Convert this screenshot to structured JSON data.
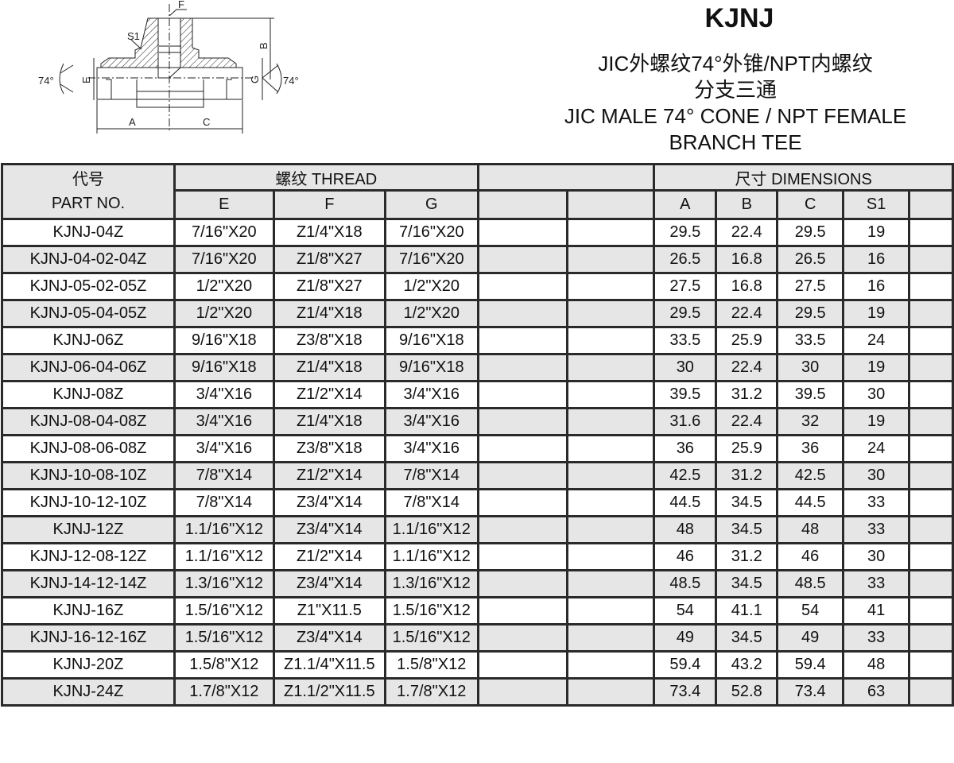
{
  "header": {
    "code": "KJNJ",
    "subtitle_cn_1": "JIC外螺纹74°外锥/NPT内螺纹",
    "subtitle_cn_2": "分支三通",
    "subtitle_en_1": "JIC MALE 74° CONE / NPT FEMALE",
    "subtitle_en_2": "BRANCH TEE"
  },
  "drawing": {
    "labels": {
      "F": "F",
      "S1": "S1",
      "B": "B",
      "E": "E",
      "G": "G",
      "A": "A",
      "C": "C",
      "angle_left": "74°",
      "angle_right": "74°"
    }
  },
  "table": {
    "part_cn": "代号",
    "part_en": "PART NO.",
    "thread": "螺纹 THREAD",
    "dimensions": "尺寸  DIMENSIONS",
    "cols": [
      "E",
      "F",
      "G",
      "",
      "",
      "A",
      "B",
      "C",
      "S1",
      ""
    ],
    "rows": [
      [
        "KJNJ-04Z",
        "7/16\"X20",
        "Z1/4\"X18",
        "7/16\"X20",
        "",
        "",
        "29.5",
        "22.4",
        "29.5",
        "19",
        ""
      ],
      [
        "KJNJ-04-02-04Z",
        "7/16\"X20",
        "Z1/8\"X27",
        "7/16\"X20",
        "",
        "",
        "26.5",
        "16.8",
        "26.5",
        "16",
        ""
      ],
      [
        "KJNJ-05-02-05Z",
        "1/2\"X20",
        "Z1/8\"X27",
        "1/2\"X20",
        "",
        "",
        "27.5",
        "16.8",
        "27.5",
        "16",
        ""
      ],
      [
        "KJNJ-05-04-05Z",
        "1/2\"X20",
        "Z1/4\"X18",
        "1/2\"X20",
        "",
        "",
        "29.5",
        "22.4",
        "29.5",
        "19",
        ""
      ],
      [
        "KJNJ-06Z",
        "9/16\"X18",
        "Z3/8\"X18",
        "9/16\"X18",
        "",
        "",
        "33.5",
        "25.9",
        "33.5",
        "24",
        ""
      ],
      [
        "KJNJ-06-04-06Z",
        "9/16\"X18",
        "Z1/4\"X18",
        "9/16\"X18",
        "",
        "",
        "30",
        "22.4",
        "30",
        "19",
        ""
      ],
      [
        "KJNJ-08Z",
        "3/4\"X16",
        "Z1/2\"X14",
        "3/4\"X16",
        "",
        "",
        "39.5",
        "31.2",
        "39.5",
        "30",
        ""
      ],
      [
        "KJNJ-08-04-08Z",
        "3/4\"X16",
        "Z1/4\"X18",
        "3/4\"X16",
        "",
        "",
        "31.6",
        "22.4",
        "32",
        "19",
        ""
      ],
      [
        "KJNJ-08-06-08Z",
        "3/4\"X16",
        "Z3/8\"X18",
        "3/4\"X16",
        "",
        "",
        "36",
        "25.9",
        "36",
        "24",
        ""
      ],
      [
        "KJNJ-10-08-10Z",
        "7/8\"X14",
        "Z1/2\"X14",
        "7/8\"X14",
        "",
        "",
        "42.5",
        "31.2",
        "42.5",
        "30",
        ""
      ],
      [
        "KJNJ-10-12-10Z",
        "7/8\"X14",
        "Z3/4\"X14",
        "7/8\"X14",
        "",
        "",
        "44.5",
        "34.5",
        "44.5",
        "33",
        ""
      ],
      [
        "KJNJ-12Z",
        "1.1/16\"X12",
        "Z3/4\"X14",
        "1.1/16\"X12",
        "",
        "",
        "48",
        "34.5",
        "48",
        "33",
        ""
      ],
      [
        "KJNJ-12-08-12Z",
        "1.1/16\"X12",
        "Z1/2\"X14",
        "1.1/16\"X12",
        "",
        "",
        "46",
        "31.2",
        "46",
        "30",
        ""
      ],
      [
        "KJNJ-14-12-14Z",
        "1.3/16\"X12",
        "Z3/4\"X14",
        "1.3/16\"X12",
        "",
        "",
        "48.5",
        "34.5",
        "48.5",
        "33",
        ""
      ],
      [
        "KJNJ-16Z",
        "1.5/16\"X12",
        "Z1\"X11.5",
        "1.5/16\"X12",
        "",
        "",
        "54",
        "41.1",
        "54",
        "41",
        ""
      ],
      [
        "KJNJ-16-12-16Z",
        "1.5/16\"X12",
        "Z3/4\"X14",
        "1.5/16\"X12",
        "",
        "",
        "49",
        "34.5",
        "49",
        "33",
        ""
      ],
      [
        "KJNJ-20Z",
        "1.5/8\"X12",
        "Z1.1/4\"X11.5",
        "1.5/8\"X12",
        "",
        "",
        "59.4",
        "43.2",
        "59.4",
        "48",
        ""
      ],
      [
        "KJNJ-24Z",
        "1.7/8\"X12",
        "Z1.1/2\"X11.5",
        "1.7/8\"X12",
        "",
        "",
        "73.4",
        "52.8",
        "73.4",
        "63",
        ""
      ]
    ]
  }
}
